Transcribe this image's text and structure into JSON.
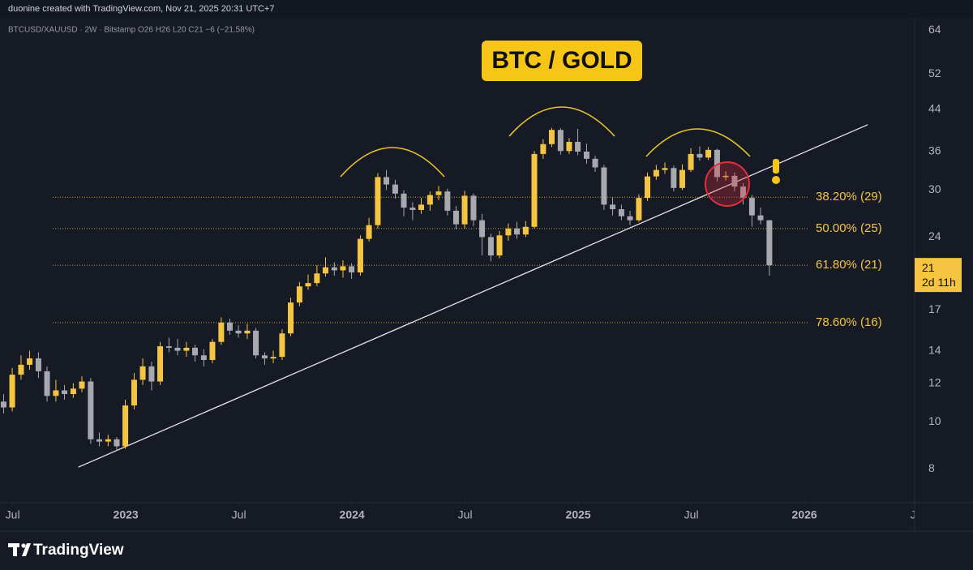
{
  "page": {
    "credit": "duonine created with TradingView.com, Nov 21, 2025 20:31 UTC+7",
    "brand": "TradingView"
  },
  "chart_data": {
    "type": "candlestick",
    "title": "BTC / GOLD",
    "legend_text": "BTCUSD/XAUUSD · 2W · Bitstamp   O26  H26  L20  C21  −6 (−21.58%)",
    "log_scale": true,
    "grid": false,
    "up_color": "#f5c542",
    "down_color": "#a7a9ae",
    "xlim": [
      2022.444,
      2026.487
    ],
    "xticks": [
      {
        "value": 2022.5,
        "label": "Jul"
      },
      {
        "value": 2023,
        "label": "2023"
      },
      {
        "value": 2023.5,
        "label": "Jul"
      },
      {
        "value": 2024,
        "label": "2024"
      },
      {
        "value": 2024.5,
        "label": "Jul"
      },
      {
        "value": 2025,
        "label": "2025"
      },
      {
        "value": 2025.5,
        "label": "Jul"
      },
      {
        "value": 2026,
        "label": "2026"
      },
      {
        "value": 2026.5,
        "label": "Jul"
      }
    ],
    "ylim": [
      6.81,
      67.9
    ],
    "yticks": [
      8,
      10,
      12,
      14,
      17,
      24,
      30,
      36,
      44,
      52,
      64
    ],
    "x": [
      2022.46,
      2022.498,
      2022.537,
      2022.575,
      2022.614,
      2022.652,
      2022.691,
      2022.729,
      2022.768,
      2022.806,
      2022.845,
      2022.883,
      2022.922,
      2022.96,
      2022.998,
      2023.037,
      2023.075,
      2023.114,
      2023.152,
      2023.191,
      2023.229,
      2023.268,
      2023.306,
      2023.345,
      2023.383,
      2023.422,
      2023.46,
      2023.498,
      2023.537,
      2023.575,
      2023.614,
      2023.652,
      2023.691,
      2023.729,
      2023.768,
      2023.806,
      2023.845,
      2023.883,
      2023.922,
      2023.96,
      2023.998,
      2024.037,
      2024.075,
      2024.114,
      2024.152,
      2024.191,
      2024.229,
      2024.268,
      2024.306,
      2024.345,
      2024.383,
      2024.422,
      2024.46,
      2024.498,
      2024.537,
      2024.575,
      2024.614,
      2024.652,
      2024.691,
      2024.729,
      2024.768,
      2024.806,
      2024.845,
      2024.883,
      2024.922,
      2024.96,
      2024.998,
      2025.037,
      2025.075,
      2025.114,
      2025.152,
      2025.191,
      2025.229,
      2025.268,
      2025.306,
      2025.345,
      2025.383,
      2025.422,
      2025.46,
      2025.498,
      2025.537,
      2025.575,
      2025.614,
      2025.652,
      2025.691,
      2025.729,
      2025.768,
      2025.806,
      2025.845
    ],
    "open": [
      11.0,
      10.7,
      12.5,
      13.1,
      13.5,
      12.7,
      11.3,
      11.6,
      11.4,
      11.7,
      12.1,
      9.2,
      9.1,
      9.2,
      8.9,
      10.8,
      12.2,
      13.0,
      12.1,
      14.3,
      14.2,
      14.0,
      14.2,
      13.7,
      13.4,
      14.6,
      16.0,
      15.4,
      15.2,
      15.4,
      13.7,
      13.5,
      13.6,
      15.2,
      17.6,
      19.0,
      19.3,
      20.2,
      20.8,
      20.5,
      20.9,
      20.3,
      23.8,
      25.4,
      31.9,
      30.8,
      29.5,
      27.6,
      27.3,
      28.0,
      29.3,
      29.8,
      27.2,
      25.5,
      29.2,
      26.0,
      24.0,
      22.0,
      24.2,
      25.0,
      24.3,
      25.2,
      35.6,
      37.3,
      39.9,
      36.1,
      37.7,
      36.0,
      34.8,
      33.4,
      28.0,
      27.4,
      26.5,
      26.0,
      28.9,
      32.0,
      33.0,
      33.3,
      30.3,
      33.0,
      35.6,
      35.0,
      36.3,
      31.9,
      32.1,
      30.5,
      28.9,
      26.6,
      26
    ],
    "high": [
      11.4,
      12.9,
      13.7,
      14.0,
      13.9,
      13.0,
      12.2,
      11.9,
      12.0,
      12.4,
      12.3,
      9.5,
      9.4,
      9.3,
      11.1,
      12.6,
      13.5,
      13.3,
      14.6,
      14.9,
      14.8,
      14.6,
      14.4,
      14.1,
      14.8,
      16.4,
      16.3,
      15.8,
      15.9,
      15.6,
      13.9,
      14.0,
      15.5,
      18.0,
      19.4,
      20.1,
      21.0,
      21.8,
      21.3,
      21.5,
      21.2,
      24.2,
      26.3,
      32.5,
      33.0,
      31.5,
      30.0,
      28.3,
      28.9,
      29.8,
      30.6,
      30.2,
      27.8,
      29.9,
      29.5,
      26.8,
      24.4,
      24.7,
      25.6,
      25.8,
      25.9,
      36.1,
      38.2,
      40.3,
      40.2,
      38.4,
      40.1,
      37.4,
      35.3,
      33.8,
      29.0,
      28.0,
      27.2,
      29.4,
      32.6,
      33.8,
      34.2,
      33.7,
      33.9,
      36.6,
      36.9,
      36.8,
      36.5,
      32.8,
      32.6,
      31.0,
      29.3,
      27.6,
      26
    ],
    "low": [
      10.4,
      10.5,
      12.2,
      12.8,
      12.3,
      11.0,
      11.0,
      11.1,
      11.2,
      11.5,
      9.0,
      8.9,
      8.9,
      8.7,
      8.8,
      10.6,
      11.9,
      11.6,
      11.9,
      13.9,
      13.7,
      13.6,
      13.3,
      13.0,
      13.2,
      14.4,
      15.1,
      14.9,
      14.8,
      13.5,
      13.1,
      13.2,
      13.4,
      15.0,
      17.3,
      18.7,
      19.0,
      19.9,
      20.0,
      19.8,
      19.7,
      20.0,
      23.5,
      25.0,
      30.0,
      28.8,
      26.5,
      26.0,
      26.8,
      27.2,
      28.6,
      26.6,
      24.9,
      25.0,
      25.3,
      22.0,
      21.4,
      21.7,
      23.6,
      23.8,
      24.0,
      25.0,
      34.8,
      36.8,
      35.5,
      35.6,
      35.4,
      34.0,
      32.7,
      27.3,
      26.6,
      26.0,
      25.4,
      25.8,
      28.5,
      31.5,
      32.4,
      29.8,
      30.0,
      32.7,
      34.5,
      34.6,
      31.2,
      31.4,
      29.8,
      28.0,
      25.2,
      25.5,
      20
    ],
    "close": [
      10.7,
      12.5,
      13.1,
      13.5,
      12.7,
      11.3,
      11.6,
      11.4,
      11.7,
      12.1,
      9.2,
      9.1,
      9.2,
      8.9,
      10.8,
      12.2,
      13.0,
      12.1,
      14.3,
      14.2,
      14.0,
      14.2,
      13.7,
      13.4,
      14.6,
      16.0,
      15.4,
      15.2,
      15.4,
      13.7,
      13.5,
      13.6,
      15.2,
      17.6,
      19.0,
      19.3,
      20.2,
      20.8,
      20.5,
      20.9,
      20.3,
      23.8,
      25.4,
      31.9,
      30.8,
      29.5,
      27.6,
      27.3,
      28.0,
      29.3,
      29.8,
      27.2,
      25.5,
      29.2,
      26.0,
      24.0,
      22.0,
      24.2,
      25.0,
      24.3,
      25.2,
      35.6,
      37.3,
      39.9,
      36.1,
      37.7,
      36.0,
      34.8,
      33.4,
      28.0,
      27.4,
      26.5,
      26.0,
      28.9,
      32.0,
      33.0,
      33.3,
      30.3,
      33.0,
      35.6,
      35.0,
      36.3,
      31.9,
      32.1,
      30.5,
      28.9,
      26.6,
      26,
      21
    ],
    "fib_levels": [
      {
        "value": 29,
        "label": "38.20% (29)"
      },
      {
        "value": 25,
        "label": "50.00% (25)"
      },
      {
        "value": 21,
        "label": "61.80% (21)"
      },
      {
        "value": 16,
        "label": "78.60% (16)"
      }
    ],
    "trendline": {
      "x": [
        2022.79,
        2026.28
      ],
      "y": [
        8.06,
        40.9
      ]
    },
    "last_price": 21,
    "countdown": "2d 11h"
  }
}
